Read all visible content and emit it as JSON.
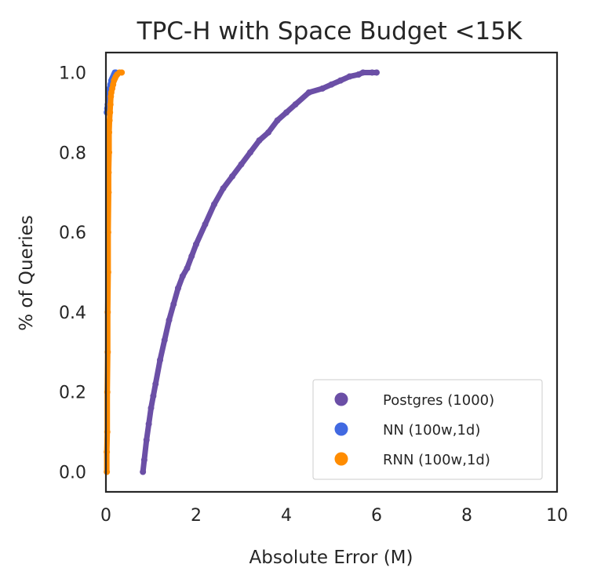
{
  "chart_data": {
    "type": "scatter",
    "title": "TPC-H with Space Budget <15K",
    "xlabel": "Absolute Error (M)",
    "ylabel": "% of Queries",
    "xlim": [
      0,
      10
    ],
    "ylim": [
      -0.05,
      1.05
    ],
    "x_ticks": [
      0,
      2,
      4,
      6,
      8,
      10
    ],
    "y_ticks": [
      0.0,
      0.2,
      0.4,
      0.6,
      0.8,
      1.0
    ],
    "x_tick_labels": [
      "0",
      "2",
      "4",
      "6",
      "8",
      "10"
    ],
    "y_tick_labels": [
      "0.0",
      "0.2",
      "0.4",
      "0.6",
      "0.8",
      "1.0"
    ],
    "grid": false,
    "legend_position": "lower-right",
    "series": [
      {
        "name": "Postgres (1000)",
        "color": "#6b4fa6",
        "x": [
          0.82,
          0.85,
          0.9,
          0.95,
          1.0,
          1.05,
          1.1,
          1.2,
          1.3,
          1.4,
          1.5,
          1.6,
          1.7,
          1.8,
          1.9,
          2.0,
          2.2,
          2.4,
          2.6,
          2.8,
          3.0,
          3.2,
          3.4,
          3.6,
          3.8,
          4.0,
          4.2,
          4.5,
          4.8,
          5.0,
          5.2,
          5.4,
          5.6,
          5.7,
          5.9,
          6.0
        ],
        "y": [
          0.0,
          0.03,
          0.08,
          0.12,
          0.16,
          0.19,
          0.22,
          0.28,
          0.33,
          0.38,
          0.42,
          0.46,
          0.49,
          0.51,
          0.54,
          0.57,
          0.62,
          0.67,
          0.71,
          0.74,
          0.77,
          0.8,
          0.83,
          0.85,
          0.88,
          0.9,
          0.92,
          0.95,
          0.96,
          0.97,
          0.98,
          0.99,
          0.995,
          1.0,
          1.0,
          1.0
        ]
      },
      {
        "name": "NN (100w,1d)",
        "color": "#4169e1",
        "x": [
          0.02,
          0.03,
          0.04,
          0.05,
          0.06,
          0.07,
          0.08,
          0.1,
          0.12,
          0.14,
          0.16,
          0.18,
          0.2,
          0.22
        ],
        "y": [
          0.9,
          0.91,
          0.92,
          0.93,
          0.94,
          0.95,
          0.96,
          0.97,
          0.98,
          0.985,
          0.99,
          0.995,
          1.0,
          1.0
        ]
      },
      {
        "name": "RNN (100w,1d)",
        "color": "#ff8c00",
        "x": [
          0.02,
          0.02,
          0.03,
          0.03,
          0.04,
          0.04,
          0.05,
          0.05,
          0.06,
          0.06,
          0.07,
          0.07,
          0.08,
          0.09,
          0.1,
          0.11,
          0.12,
          0.14,
          0.16,
          0.18,
          0.2,
          0.22,
          0.25,
          0.3,
          0.35
        ],
        "y": [
          0.0,
          0.05,
          0.1,
          0.2,
          0.3,
          0.4,
          0.5,
          0.6,
          0.7,
          0.75,
          0.8,
          0.85,
          0.88,
          0.9,
          0.92,
          0.94,
          0.95,
          0.96,
          0.97,
          0.98,
          0.985,
          0.99,
          0.995,
          1.0,
          1.0
        ]
      }
    ]
  }
}
